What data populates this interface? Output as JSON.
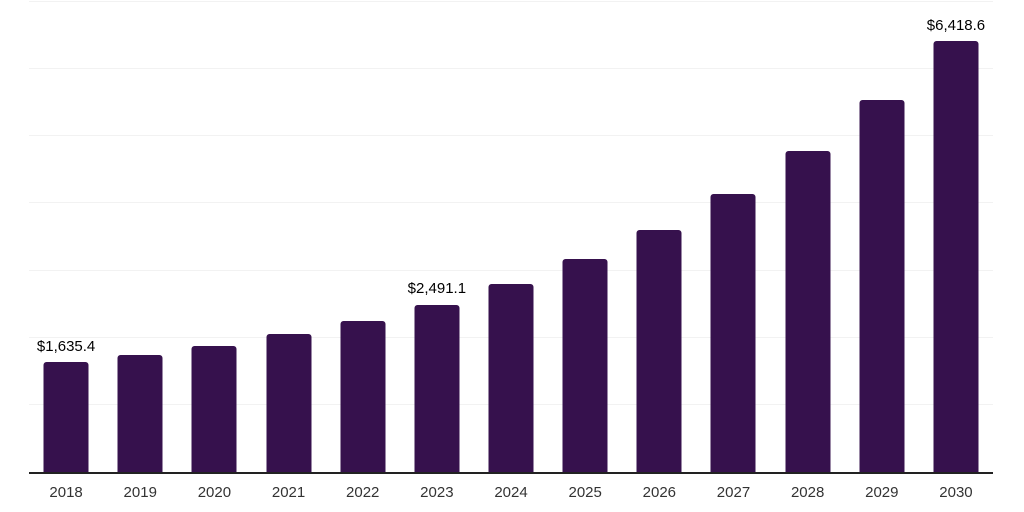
{
  "chart": {
    "background_color": "#ffffff"
  },
  "chart_data": {
    "type": "bar",
    "title": "",
    "xlabel": "",
    "ylabel": "",
    "categories": [
      "2018",
      "2019",
      "2020",
      "2021",
      "2022",
      "2023",
      "2024",
      "2025",
      "2026",
      "2027",
      "2028",
      "2029",
      "2030"
    ],
    "values": [
      1635.4,
      1745,
      1870,
      2055,
      2255,
      2491.1,
      2800,
      3170,
      3600,
      4140,
      4775,
      5540,
      6418.6
    ],
    "value_labels": {
      "2018": "$1,635.4",
      "2023": "$2,491.1",
      "2030": "$6,418.6"
    },
    "ylim": [
      0,
      7000
    ],
    "gridline_step": 1000,
    "grid": "horizontal",
    "legend": "none",
    "y_tick_labels_visible": false,
    "colors": {
      "bar": "#36114D",
      "axis_line": "#222222",
      "gridline": "#f2f2f2",
      "tick_label": "#333333",
      "data_label": "#000000"
    }
  }
}
